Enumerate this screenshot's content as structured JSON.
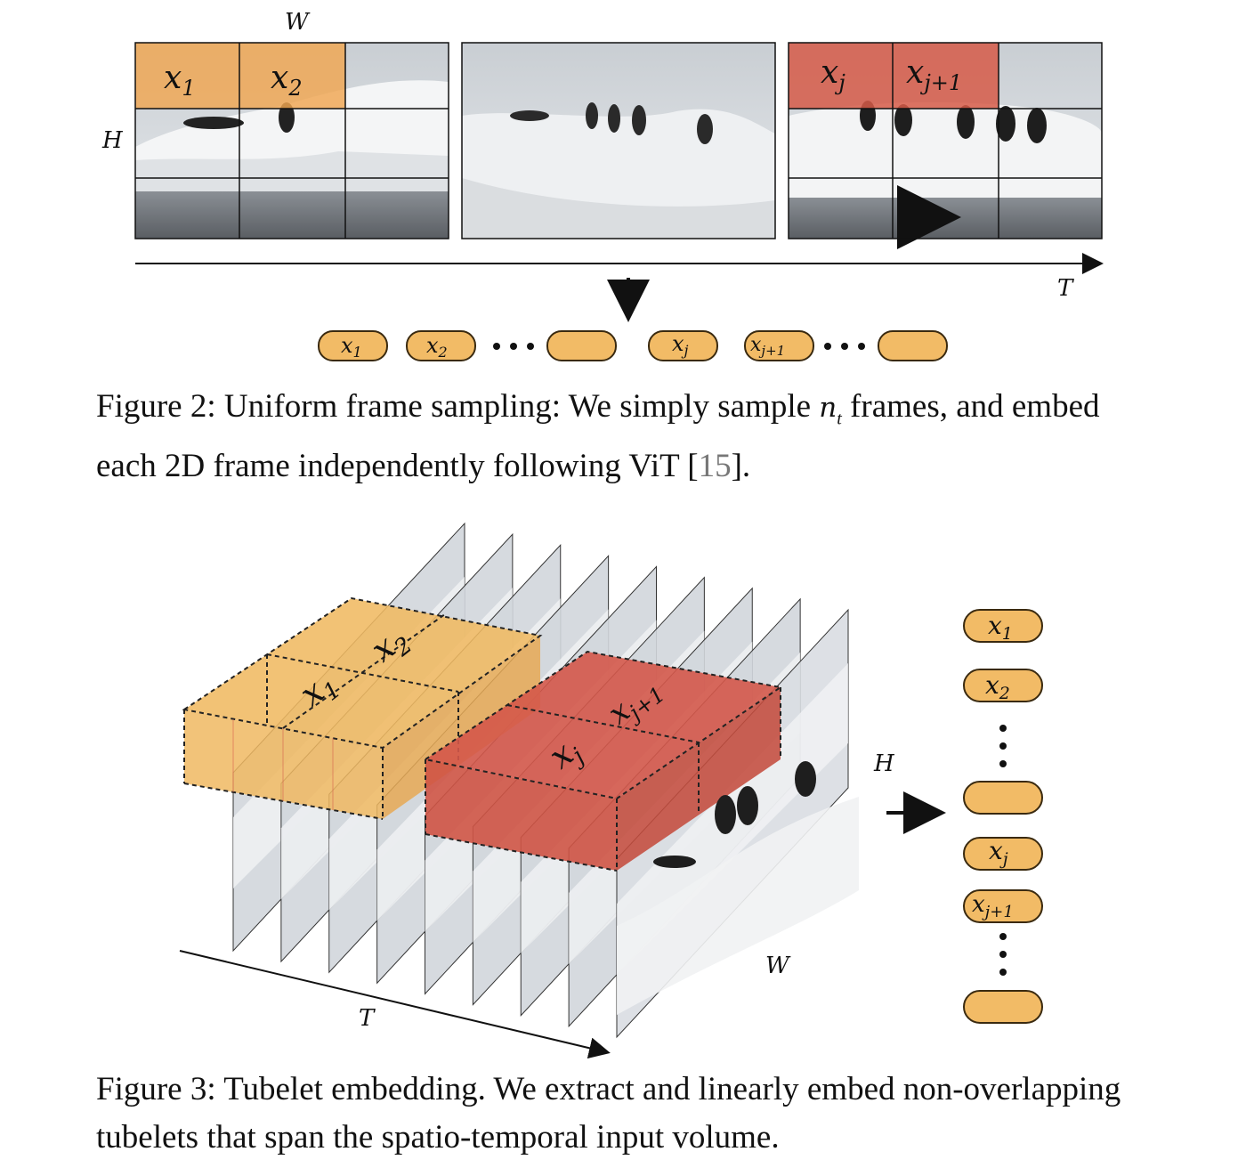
{
  "fig2": {
    "label_W": "W",
    "label_H": "H",
    "label_T": "T",
    "frame1_patches": [
      "x1",
      "x2"
    ],
    "frame3_patches": [
      "xj",
      "xj+1"
    ],
    "token_labels": [
      "x1",
      "x2",
      "",
      "xj",
      "xj+1",
      ""
    ],
    "caption": {
      "prefix": "Figure 2: Uniform frame sampling: We simply sample ",
      "var": "n",
      "var_sub": "t",
      "middle": " frames, and embed each 2D frame independently following ViT [",
      "ref": "15",
      "suffix": "]."
    }
  },
  "fig3": {
    "label_H": "H",
    "label_W": "W",
    "label_T": "T",
    "tube_labels": [
      "x1",
      "x2",
      "xj",
      "xj+1"
    ],
    "token_labels": [
      "x1",
      "x2",
      "",
      "xj",
      "xj+1",
      ""
    ],
    "caption": "Figure 3: Tubelet embedding. We extract and linearly embed non-overlapping tubelets that span the spatio-temporal input volume."
  },
  "colors": {
    "orange": "#f0b962",
    "red": "#d4584a",
    "token_fill": "#f2bb66",
    "token_stroke": "#3a2a10",
    "ice": "#e9ecef",
    "water": "#6c7076"
  }
}
